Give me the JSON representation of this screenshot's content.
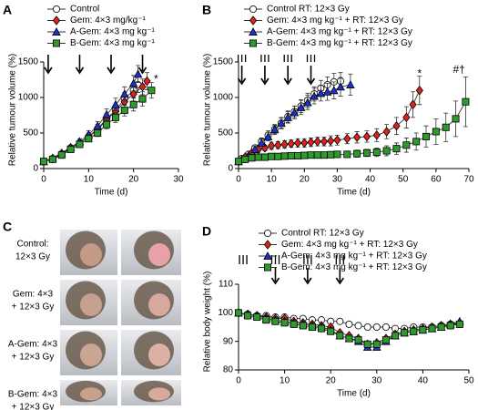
{
  "chart_data": [
    {
      "type": "line",
      "panel": "A",
      "x_label": "Time (d)",
      "y_label": "Relative tumour volume (%)",
      "xlim": [
        0,
        30
      ],
      "xticks": [
        0,
        10,
        20,
        30
      ],
      "ylim": [
        0,
        1500
      ],
      "yticks": [
        0,
        500,
        1000,
        1500
      ],
      "arrows": [
        1,
        8,
        15,
        22
      ],
      "rt_days": [],
      "annotations": [
        {
          "text": "*",
          "x": 25,
          "y": 1250
        }
      ],
      "series": [
        {
          "name": "Control",
          "color": "#ffffff",
          "marker": "circle",
          "x": [
            0,
            2,
            4,
            6,
            8,
            10,
            12,
            14,
            16,
            18,
            20,
            21
          ],
          "values": [
            100,
            140,
            200,
            290,
            360,
            450,
            560,
            700,
            820,
            980,
            1100,
            1180
          ],
          "errors": [
            0,
            20,
            30,
            30,
            40,
            50,
            60,
            70,
            80,
            90,
            100,
            110
          ]
        },
        {
          "name": "Gem: 4×3 mg/kg⁻¹",
          "color": "#e0201c",
          "marker": "diamond",
          "x": [
            0,
            2,
            4,
            6,
            8,
            10,
            12,
            14,
            16,
            18,
            20,
            22,
            23
          ],
          "values": [
            100,
            140,
            210,
            290,
            360,
            450,
            540,
            690,
            800,
            940,
            1050,
            1150,
            1230
          ],
          "errors": [
            0,
            20,
            30,
            30,
            40,
            50,
            60,
            70,
            80,
            90,
            100,
            110,
            120
          ]
        },
        {
          "name": "A-Gem: 4×3 mg kg⁻¹",
          "color": "#1f2fd0",
          "marker": "triangle",
          "x": [
            0,
            2,
            4,
            6,
            8,
            10,
            12,
            14,
            16,
            18,
            20,
            21
          ],
          "values": [
            100,
            150,
            220,
            300,
            380,
            480,
            600,
            760,
            900,
            1050,
            1200,
            1330
          ],
          "errors": [
            0,
            20,
            30,
            30,
            40,
            50,
            60,
            80,
            90,
            100,
            110,
            120
          ]
        },
        {
          "name": "B-Gem: 4×3 mg kg⁻¹",
          "color": "#2e9a2e",
          "marker": "square",
          "x": [
            0,
            2,
            4,
            6,
            8,
            10,
            12,
            14,
            16,
            18,
            20,
            22,
            24
          ],
          "values": [
            100,
            130,
            190,
            270,
            340,
            420,
            500,
            620,
            720,
            820,
            900,
            980,
            1100
          ],
          "errors": [
            0,
            20,
            20,
            30,
            40,
            40,
            50,
            60,
            70,
            80,
            90,
            100,
            110
          ]
        }
      ]
    },
    {
      "type": "line",
      "panel": "B",
      "x_label": "Time (d)",
      "y_label": "Relative tumour volume (%)",
      "xlim": [
        0,
        70
      ],
      "xticks": [
        0,
        10,
        20,
        30,
        40,
        50,
        60,
        70
      ],
      "ylim": [
        0,
        1500
      ],
      "yticks": [
        0,
        500,
        1000,
        1500
      ],
      "arrows": [
        1,
        8,
        15,
        22
      ],
      "rt_days": [
        1,
        8,
        15,
        22
      ],
      "annotations": [
        {
          "text": "*",
          "x": 55,
          "y": 1330
        },
        {
          "text": "#†",
          "x": 67,
          "y": 1390
        }
      ],
      "series": [
        {
          "name": "Control RT: 12×3 Gy",
          "color": "#ffffff",
          "marker": "circle",
          "x": [
            0,
            1,
            3,
            5,
            7,
            9,
            11,
            13,
            15,
            17,
            19,
            21,
            23,
            25,
            27,
            29,
            31
          ],
          "values": [
            100,
            140,
            200,
            290,
            380,
            470,
            550,
            640,
            730,
            800,
            880,
            960,
            1050,
            1130,
            1180,
            1220,
            1230
          ],
          "errors": [
            0,
            20,
            30,
            40,
            50,
            60,
            60,
            70,
            80,
            80,
            90,
            100,
            100,
            110,
            110,
            120,
            120
          ]
        },
        {
          "name": "Gem: 4×3 mg kg⁻¹ + RT: 12×3 Gy",
          "color": "#e0201c",
          "marker": "diamond",
          "x": [
            0,
            2,
            4,
            6,
            8,
            10,
            12,
            14,
            16,
            18,
            20,
            22,
            24,
            26,
            28,
            30,
            33,
            36,
            39,
            42,
            45,
            48,
            51,
            53,
            55
          ],
          "values": [
            100,
            160,
            220,
            270,
            290,
            320,
            330,
            340,
            350,
            360,
            360,
            370,
            380,
            380,
            390,
            400,
            420,
            440,
            450,
            470,
            520,
            600,
            720,
            900,
            1100
          ],
          "errors": [
            0,
            20,
            30,
            40,
            40,
            50,
            50,
            50,
            50,
            60,
            60,
            60,
            60,
            60,
            70,
            70,
            70,
            80,
            80,
            90,
            100,
            120,
            150,
            180,
            200
          ]
        },
        {
          "name": "A-Gem: 4×3 mg kg⁻¹ + RT: 12×3 Gy",
          "color": "#1f2fd0",
          "marker": "triangle",
          "x": [
            0,
            1,
            3,
            5,
            7,
            9,
            11,
            13,
            15,
            17,
            19,
            21,
            23,
            25,
            27,
            29,
            31,
            34
          ],
          "values": [
            100,
            130,
            180,
            270,
            360,
            450,
            550,
            640,
            720,
            790,
            860,
            930,
            1020,
            1060,
            1080,
            1100,
            1150,
            1180
          ],
          "errors": [
            0,
            20,
            30,
            40,
            50,
            60,
            70,
            80,
            80,
            90,
            100,
            100,
            110,
            110,
            120,
            120,
            130,
            150
          ]
        },
        {
          "name": "B-Gem: 4×3 mg kg⁻¹ + RT: 12×3 Gy",
          "color": "#2e9a2e",
          "marker": "square",
          "x": [
            0,
            2,
            4,
            6,
            8,
            10,
            12,
            14,
            16,
            18,
            20,
            22,
            24,
            26,
            28,
            30,
            33,
            36,
            39,
            42,
            45,
            48,
            51,
            54,
            57,
            60,
            63,
            66,
            69
          ],
          "values": [
            100,
            130,
            150,
            160,
            160,
            170,
            170,
            175,
            180,
            180,
            185,
            190,
            190,
            190,
            195,
            200,
            200,
            210,
            220,
            230,
            250,
            280,
            330,
            380,
            450,
            520,
            580,
            700,
            940
          ],
          "errors": [
            0,
            20,
            20,
            30,
            30,
            30,
            30,
            30,
            30,
            30,
            30,
            30,
            30,
            30,
            40,
            40,
            40,
            50,
            50,
            60,
            70,
            80,
            100,
            120,
            150,
            180,
            200,
            250,
            350
          ]
        }
      ]
    },
    {
      "type": "line",
      "panel": "D",
      "x_label": "Time (d)",
      "y_label": "Relative body weight (%)",
      "xlim": [
        0,
        50
      ],
      "xticks": [
        0,
        10,
        20,
        30,
        40,
        50
      ],
      "ylim": [
        80,
        110
      ],
      "yticks": [
        80,
        90,
        100,
        110
      ],
      "arrows": [
        8,
        15,
        22
      ],
      "rt_days": [
        1,
        8,
        15,
        22
      ],
      "annotations": [],
      "x": [
        0,
        2,
        4,
        6,
        8,
        10,
        12,
        14,
        16,
        18,
        20,
        22,
        24,
        26,
        28,
        30,
        32,
        34,
        36,
        38,
        40,
        42,
        44,
        46,
        48
      ],
      "series": [
        {
          "name": "Control RT: 12×3 Gy",
          "color": "#ffffff",
          "marker": "circle",
          "values": [
            100,
            99.5,
            99,
            99,
            98.5,
            98.5,
            98,
            98,
            97.5,
            97.5,
            97,
            97,
            96,
            95.5,
            95,
            95,
            95,
            94.5,
            94.5,
            95,
            95,
            95,
            95.5,
            96,
            96
          ]
        },
        {
          "name": "Gem: 4×3 mg kg⁻¹ + RT: 12×3 Gy",
          "color": "#e0201c",
          "marker": "diamond",
          "values": [
            100,
            99.5,
            99,
            98.5,
            98,
            98,
            97,
            96.5,
            96,
            95.5,
            95,
            93,
            92,
            91,
            89,
            89.5,
            91,
            92.5,
            93.5,
            94,
            94.5,
            95,
            95.5,
            96,
            96.5
          ]
        },
        {
          "name": "A-Gem: 4×3 mg kg⁻¹ + RT: 12×3 Gy",
          "color": "#1f2fd0",
          "marker": "triangle",
          "values": [
            100,
            99.5,
            99,
            98,
            97.5,
            97,
            96.5,
            96,
            95.5,
            95,
            94,
            92,
            91,
            90,
            88,
            88,
            90,
            92,
            93,
            93.5,
            94,
            94.5,
            95,
            96,
            97
          ]
        },
        {
          "name": "B-Gem: 4×3 mg kg⁻¹ + RT: 12×3 Gy",
          "color": "#2e9a2e",
          "marker": "square",
          "values": [
            100,
            99,
            98.5,
            97.5,
            97,
            96.5,
            96,
            95.5,
            95,
            94.5,
            93.5,
            92,
            91,
            90.5,
            89,
            89,
            90.5,
            92,
            93,
            93.5,
            94,
            94.5,
            95,
            95.5,
            96
          ]
        }
      ]
    }
  ],
  "photos": {
    "panel": "C",
    "rows": [
      {
        "label": [
          "Control:",
          "12×3 Gy"
        ]
      },
      {
        "label": [
          "Gem: 4×3",
          "+ 12×3 Gy"
        ]
      },
      {
        "label": [
          "A-Gem: 4×3",
          "+ 12×3 Gy"
        ]
      },
      {
        "label": [
          "B-Gem: 4×3",
          "+ 12×3 Gy"
        ]
      }
    ]
  }
}
